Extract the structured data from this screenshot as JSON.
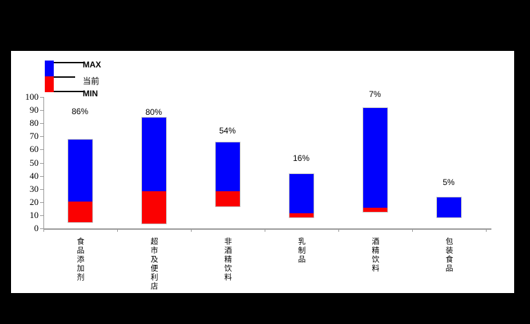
{
  "window": {
    "background": "#000000",
    "panel_background": "#ffffff"
  },
  "legend": {
    "max_label": "MAX",
    "current_label": "当前",
    "min_label": "MIN"
  },
  "chart_data": {
    "type": "bar",
    "variant": "stacked-range",
    "title": "",
    "xlabel": "",
    "ylabel": "",
    "categories": [
      "食品添加剂",
      "超市及便利店",
      "非酒精饮料",
      "乳制品",
      "酒精饮料",
      "包装食品"
    ],
    "series": [
      {
        "name": "MIN",
        "values": [
          4,
          3,
          16,
          8,
          12,
          8
        ]
      },
      {
        "name": "当前",
        "values": [
          21,
          29,
          29,
          12,
          16,
          8
        ]
      },
      {
        "name": "MAX",
        "values": [
          68,
          85,
          66,
          42,
          92,
          24
        ]
      }
    ],
    "bar_labels": [
      "86%",
      "80%",
      "54%",
      "16%",
      "7%",
      "5%"
    ],
    "ylim": [
      0,
      100
    ],
    "yticks": [
      0,
      10,
      20,
      30,
      40,
      50,
      60,
      70,
      80,
      90,
      100
    ],
    "grid": false,
    "legend_position": "top-left",
    "colors": {
      "max_segment": "#0101fd",
      "current_segment": "#fb0101",
      "axis": "#9a9a9a",
      "text": "#000000"
    }
  }
}
